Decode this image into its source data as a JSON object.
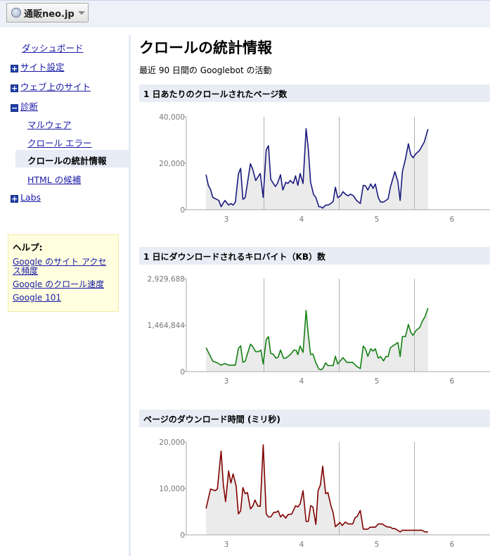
{
  "header": {
    "site_name": "通販neo.jp"
  },
  "sidebar": {
    "items": [
      {
        "label": "ダッシュボード",
        "expander": null
      },
      {
        "label": "サイト設定",
        "expander": "+"
      },
      {
        "label": "ウェブ上のサイト",
        "expander": "+"
      },
      {
        "label": "診断",
        "expander": "−"
      },
      {
        "label": "マルウェア",
        "expander": null
      },
      {
        "label": "クロール エラー",
        "expander": null
      },
      {
        "label": "クロールの統計情報",
        "expander": null,
        "active": true
      },
      {
        "label": "HTML の候補",
        "expander": null
      },
      {
        "label": "Labs",
        "expander": "+"
      }
    ],
    "help": {
      "title": "ヘルプ:",
      "links": [
        "Google のサイト アクセス頻度",
        "Google のクロール速度",
        "Google 101"
      ]
    }
  },
  "main": {
    "title": "クロールの統計情報",
    "subtitle": "最近 90 日間の Googlebot の活動"
  },
  "chart_data": [
    {
      "type": "area",
      "title": "1 日あたりのクロールされたページ数",
      "color": "#1a1a80",
      "fill": "#ebebeb",
      "x_ticks": [
        "3",
        "4",
        "5",
        "6"
      ],
      "y_ticks": [
        "0",
        "20,000",
        "40,000"
      ],
      "xlim": [
        2.4,
        6.5
      ],
      "ylim": [
        0,
        40000
      ],
      "grid": "vertical at 3.5, 4.5, 5.5",
      "points": [
        [
          2.73,
          15100
        ],
        [
          2.76,
          10500
        ],
        [
          2.79,
          8700
        ],
        [
          2.82,
          5300
        ],
        [
          2.87,
          4500
        ],
        [
          2.9,
          4000
        ],
        [
          2.93,
          1300
        ],
        [
          2.98,
          4000
        ],
        [
          3.03,
          2000
        ],
        [
          3.06,
          2700
        ],
        [
          3.09,
          2000
        ],
        [
          3.12,
          3300
        ],
        [
          3.16,
          15400
        ],
        [
          3.19,
          17800
        ],
        [
          3.22,
          4500
        ],
        [
          3.25,
          5200
        ],
        [
          3.32,
          19800
        ],
        [
          3.35,
          17400
        ],
        [
          3.39,
          12600
        ],
        [
          3.45,
          15600
        ],
        [
          3.49,
          5300
        ],
        [
          3.53,
          25800
        ],
        [
          3.56,
          27600
        ],
        [
          3.59,
          13100
        ],
        [
          3.65,
          10000
        ],
        [
          3.68,
          11400
        ],
        [
          3.72,
          15100
        ],
        [
          3.75,
          8500
        ],
        [
          3.79,
          11800
        ],
        [
          3.82,
          11300
        ],
        [
          3.85,
          12600
        ],
        [
          3.89,
          11300
        ],
        [
          3.92,
          14600
        ],
        [
          3.95,
          10500
        ],
        [
          3.98,
          15600
        ],
        [
          4.02,
          11300
        ],
        [
          4.06,
          34900
        ],
        [
          4.09,
          26100
        ],
        [
          4.12,
          11800
        ],
        [
          4.16,
          6500
        ],
        [
          4.19,
          5300
        ],
        [
          4.23,
          1300
        ],
        [
          4.26,
          1200
        ],
        [
          4.28,
          700
        ],
        [
          4.32,
          2000
        ],
        [
          4.35,
          2000
        ],
        [
          4.38,
          2500
        ],
        [
          4.42,
          3500
        ],
        [
          4.45,
          9700
        ],
        [
          4.48,
          5200
        ],
        [
          4.52,
          6000
        ],
        [
          4.55,
          7800
        ],
        [
          4.59,
          6500
        ],
        [
          4.62,
          6000
        ],
        [
          4.65,
          6700
        ],
        [
          4.69,
          6000
        ],
        [
          4.73,
          4000
        ],
        [
          4.78,
          2700
        ],
        [
          4.82,
          10500
        ],
        [
          4.85,
          10300
        ],
        [
          4.88,
          8500
        ],
        [
          4.92,
          11100
        ],
        [
          4.95,
          9200
        ],
        [
          4.98,
          11100
        ],
        [
          5.02,
          5200
        ],
        [
          5.05,
          3300
        ],
        [
          5.09,
          3300
        ],
        [
          5.15,
          4700
        ],
        [
          5.18,
          9700
        ],
        [
          5.24,
          16400
        ],
        [
          5.28,
          12100
        ],
        [
          5.31,
          4000
        ],
        [
          5.34,
          16400
        ],
        [
          5.38,
          21800
        ],
        [
          5.42,
          28400
        ],
        [
          5.45,
          23800
        ],
        [
          5.48,
          22400
        ],
        [
          5.52,
          24100
        ],
        [
          5.57,
          25600
        ],
        [
          5.63,
          29100
        ],
        [
          5.68,
          34700
        ]
      ]
    },
    {
      "type": "area",
      "title": "1 日にダウンロードされるキロバイト（KB）数",
      "color": "#138013",
      "fill": "#ebebeb",
      "x_ticks": [
        "3",
        "4",
        "5",
        "6"
      ],
      "y_ticks": [
        "0",
        "1,464,844",
        "2,929,688"
      ],
      "xlim": [
        2.4,
        6.5
      ],
      "ylim": [
        0,
        2929688
      ],
      "grid": "vertical at 3.5, 4.5, 5.5",
      "points": [
        [
          2.73,
          754000
        ],
        [
          2.82,
          330000
        ],
        [
          2.88,
          278000
        ],
        [
          2.93,
          205000
        ],
        [
          2.98,
          256000
        ],
        [
          3.03,
          205000
        ],
        [
          3.12,
          205000
        ],
        [
          3.16,
          732000
        ],
        [
          3.19,
          813000
        ],
        [
          3.22,
          293000
        ],
        [
          3.25,
          330000
        ],
        [
          3.32,
          864000
        ],
        [
          3.35,
          791000
        ],
        [
          3.39,
          630000
        ],
        [
          3.43,
          630000
        ],
        [
          3.46,
          681000
        ],
        [
          3.49,
          242000
        ],
        [
          3.53,
          1011000
        ],
        [
          3.56,
          1106000
        ],
        [
          3.59,
          571000
        ],
        [
          3.62,
          557000
        ],
        [
          3.66,
          425000
        ],
        [
          3.69,
          461000
        ],
        [
          3.72,
          681000
        ],
        [
          3.76,
          425000
        ],
        [
          3.79,
          425000
        ],
        [
          3.85,
          535000
        ],
        [
          3.9,
          681000
        ],
        [
          3.93,
          667000
        ],
        [
          3.95,
          535000
        ],
        [
          3.98,
          806000
        ],
        [
          4.02,
          608000
        ],
        [
          4.06,
          1926000
        ],
        [
          4.09,
          1157000
        ],
        [
          4.12,
          535000
        ],
        [
          4.15,
          557000
        ],
        [
          4.19,
          278000
        ],
        [
          4.23,
          81000
        ],
        [
          4.26,
          59000
        ],
        [
          4.28,
          88000
        ],
        [
          4.32,
          278000
        ],
        [
          4.35,
          190000
        ],
        [
          4.42,
          190000
        ],
        [
          4.45,
          483000
        ],
        [
          4.48,
          242000
        ],
        [
          4.55,
          439000
        ],
        [
          4.6,
          293000
        ],
        [
          4.68,
          293000
        ],
        [
          4.73,
          168000
        ],
        [
          4.78,
          95000
        ],
        [
          4.82,
          806000
        ],
        [
          4.85,
          718000
        ],
        [
          4.88,
          483000
        ],
        [
          4.92,
          718000
        ],
        [
          4.95,
          645000
        ],
        [
          4.98,
          718000
        ],
        [
          5.02,
          425000
        ],
        [
          5.05,
          476000
        ],
        [
          5.09,
          337000
        ],
        [
          5.12,
          476000
        ],
        [
          5.15,
          476000
        ],
        [
          5.18,
          754000
        ],
        [
          5.28,
          916000
        ],
        [
          5.31,
          476000
        ],
        [
          5.34,
          1106000
        ],
        [
          5.38,
          1106000
        ],
        [
          5.42,
          1487000
        ],
        [
          5.45,
          1245000
        ],
        [
          5.48,
          1143000
        ],
        [
          5.52,
          1289000
        ],
        [
          5.57,
          1392000
        ],
        [
          5.61,
          1611000
        ],
        [
          5.64,
          1729000
        ],
        [
          5.68,
          2000000
        ]
      ]
    },
    {
      "type": "area",
      "title": "ページのダウンロード時間 (ミリ秒)",
      "color": "#800000",
      "fill": "#ebebeb",
      "x_ticks": [
        "3",
        "4",
        "5",
        "6"
      ],
      "y_ticks": [
        "0",
        "10,000",
        "20,000"
      ],
      "xlim": [
        2.4,
        6.5
      ],
      "ylim": [
        0,
        20000
      ],
      "grid": "vertical at 4.5, 5.5",
      "points": [
        [
          2.73,
          5660
        ],
        [
          2.79,
          9870
        ],
        [
          2.85,
          9520
        ],
        [
          2.88,
          9870
        ],
        [
          2.93,
          18050
        ],
        [
          2.96,
          10780
        ],
        [
          2.99,
          7170
        ],
        [
          3.03,
          13780
        ],
        [
          3.06,
          11180
        ],
        [
          3.09,
          13130
        ],
        [
          3.13,
          10530
        ],
        [
          3.16,
          4510
        ],
        [
          3.19,
          5160
        ],
        [
          3.22,
          10180
        ],
        [
          3.25,
          8870
        ],
        [
          3.28,
          9120
        ],
        [
          3.32,
          5610
        ],
        [
          3.35,
          6170
        ],
        [
          3.38,
          7520
        ],
        [
          3.42,
          6170
        ],
        [
          3.45,
          6170
        ],
        [
          3.49,
          19400
        ],
        [
          3.53,
          4510
        ],
        [
          3.56,
          3860
        ],
        [
          3.59,
          3860
        ],
        [
          3.63,
          4860
        ],
        [
          3.66,
          4860
        ],
        [
          3.69,
          5160
        ],
        [
          3.72,
          3860
        ],
        [
          3.75,
          4360
        ],
        [
          3.79,
          3610
        ],
        [
          3.82,
          4360
        ],
        [
          3.87,
          4510
        ],
        [
          3.92,
          6270
        ],
        [
          3.95,
          6010
        ],
        [
          3.98,
          6670
        ],
        [
          4.02,
          9520
        ],
        [
          4.06,
          2910
        ],
        [
          4.09,
          2910
        ],
        [
          4.12,
          6270
        ],
        [
          4.15,
          6010
        ],
        [
          4.19,
          2260
        ],
        [
          4.22,
          9520
        ],
        [
          4.25,
          10780
        ],
        [
          4.28,
          14790
        ],
        [
          4.32,
          8870
        ],
        [
          4.35,
          9120
        ],
        [
          4.39,
          6270
        ],
        [
          4.42,
          4760
        ],
        [
          4.45,
          1750
        ],
        [
          4.51,
          2660
        ],
        [
          4.54,
          2010
        ],
        [
          4.58,
          2760
        ],
        [
          4.62,
          2360
        ],
        [
          4.68,
          2360
        ],
        [
          4.71,
          3660
        ],
        [
          4.74,
          4010
        ],
        [
          4.78,
          5260
        ],
        [
          4.82,
          1250
        ],
        [
          4.88,
          1250
        ],
        [
          4.91,
          1650
        ],
        [
          4.98,
          1650
        ],
        [
          5.02,
          2360
        ],
        [
          5.07,
          2360
        ],
        [
          5.13,
          1750
        ],
        [
          5.18,
          1650
        ],
        [
          5.21,
          1350
        ],
        [
          5.24,
          1350
        ],
        [
          5.31,
          650
        ],
        [
          5.34,
          1000
        ],
        [
          5.6,
          1000
        ],
        [
          5.64,
          650
        ],
        [
          5.68,
          650
        ]
      ]
    }
  ]
}
